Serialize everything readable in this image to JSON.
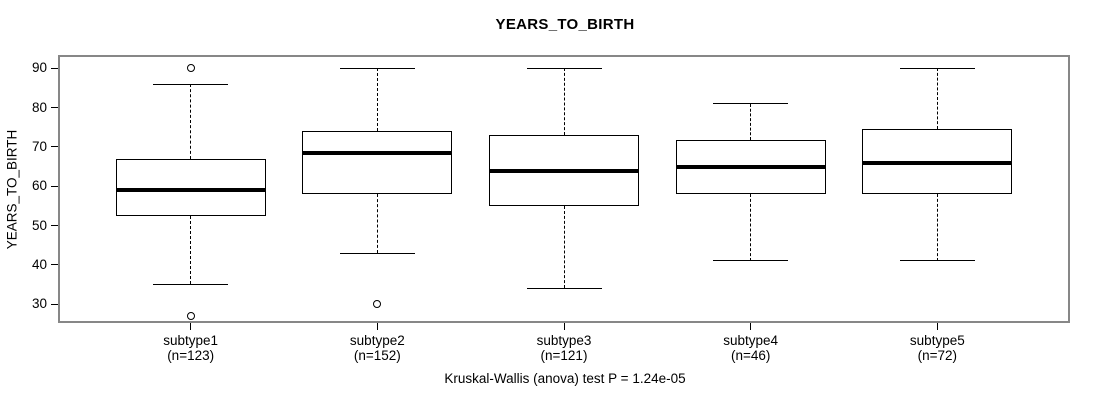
{
  "chart_data": {
    "type": "boxplot",
    "title": "YEARS_TO_BIRTH",
    "ylabel": "YEARS_TO_BIRTH",
    "xlabel": "",
    "caption": "Kruskal-Wallis (anova) test P = 1.24e-05",
    "statistical_test": "Kruskal-Wallis (anova)",
    "p_value": "1.24e-05",
    "ylim": [
      25.7,
      92.9
    ],
    "yticks": [
      30,
      40,
      50,
      60,
      70,
      80,
      90
    ],
    "grid": false,
    "legend": "none",
    "categories": [
      "subtype1",
      "subtype2",
      "subtype3",
      "subtype4",
      "subtype5"
    ],
    "series": [
      {
        "name": "subtype1",
        "count_label": "(n=123)",
        "n": 123,
        "whisker_low": 35,
        "q1": 52.5,
        "median": 59,
        "q3": 67,
        "whisker_high": 86,
        "outliers": [
          90,
          27
        ]
      },
      {
        "name": "subtype2",
        "count_label": "(n=152)",
        "n": 152,
        "whisker_low": 43,
        "q1": 58,
        "median": 68.5,
        "q3": 74,
        "whisker_high": 90,
        "outliers": [
          30
        ]
      },
      {
        "name": "subtype3",
        "count_label": "(n=121)",
        "n": 121,
        "whisker_low": 34,
        "q1": 55,
        "median": 64,
        "q3": 73,
        "whisker_high": 90,
        "outliers": []
      },
      {
        "name": "subtype4",
        "count_label": "(n=46)",
        "n": 46,
        "whisker_low": 41,
        "q1": 58,
        "median": 65,
        "q3": 71.75,
        "whisker_high": 81,
        "outliers": []
      },
      {
        "name": "subtype5",
        "count_label": "(n=72)",
        "n": 72,
        "whisker_low": 41,
        "q1": 58,
        "median": 66,
        "q3": 74.5,
        "whisker_high": 90,
        "outliers": []
      }
    ],
    "colors": {
      "line": "#000000",
      "box_fill": "#ffffff",
      "plot_border": "#878787",
      "background": "#ffffff",
      "text": "#000000"
    }
  }
}
